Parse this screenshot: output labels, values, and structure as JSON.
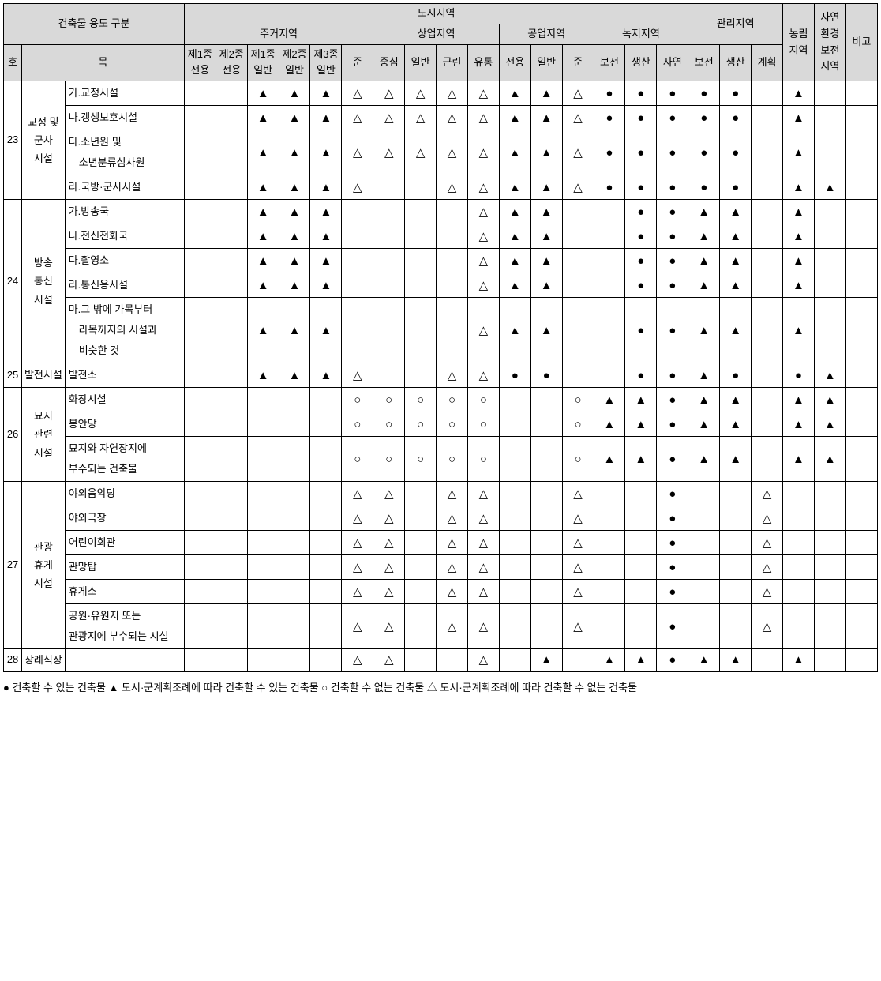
{
  "symbols": {
    "filled_circle": "●",
    "filled_triangle": "▲",
    "hollow_circle": "○",
    "hollow_triangle": "△",
    "blank": ""
  },
  "headers": {
    "title_block": "건축물 용도 구분",
    "ho": "호",
    "mok": "목",
    "urban_area": "도시지역",
    "residential": "주거지역",
    "commercial": "상업지역",
    "industrial": "공업지역",
    "green": "녹지지역",
    "management": "관리지역",
    "agri": "농림\n지역",
    "nature": "자연\n환경\n보전\n지역",
    "remark": "비고",
    "res_cols": [
      "제1종\n전용",
      "제2종\n전용",
      "제1종\n일반",
      "제2종\n일반",
      "제3종\n일반",
      "준"
    ],
    "com_cols": [
      "중심",
      "일반",
      "근린",
      "유통"
    ],
    "ind_cols": [
      "전용",
      "일반",
      "준"
    ],
    "grn_cols": [
      "보전",
      "생산",
      "자연"
    ],
    "mgmt_cols": [
      "보전",
      "생산",
      "계획"
    ]
  },
  "groups": [
    {
      "num": "23",
      "cat": "교정 및\n군사\n시설",
      "rows": [
        {
          "label": "가.교정시설",
          "cells": [
            "",
            "",
            "▲",
            "▲",
            "▲",
            "△",
            "△",
            "△",
            "△",
            "△",
            "▲",
            "▲",
            "△",
            "●",
            "●",
            "●",
            "●",
            "●",
            "",
            "▲",
            ""
          ]
        },
        {
          "label": "나.갱생보호시설",
          "cells": [
            "",
            "",
            "▲",
            "▲",
            "▲",
            "△",
            "△",
            "△",
            "△",
            "△",
            "▲",
            "▲",
            "△",
            "●",
            "●",
            "●",
            "●",
            "●",
            "",
            "▲",
            ""
          ]
        },
        {
          "label": "다.소년원 및\n　소년분류심사원",
          "cells": [
            "",
            "",
            "▲",
            "▲",
            "▲",
            "△",
            "△",
            "△",
            "△",
            "△",
            "▲",
            "▲",
            "△",
            "●",
            "●",
            "●",
            "●",
            "●",
            "",
            "▲",
            ""
          ]
        },
        {
          "label": "라.국방·군사시설",
          "cells": [
            "",
            "",
            "▲",
            "▲",
            "▲",
            "△",
            "",
            "",
            "△",
            "△",
            "▲",
            "▲",
            "△",
            "●",
            "●",
            "●",
            "●",
            "●",
            "",
            "▲",
            "▲"
          ]
        }
      ]
    },
    {
      "num": "24",
      "cat": "방송\n통신\n시설",
      "rows": [
        {
          "label": "가.방송국",
          "cells": [
            "",
            "",
            "▲",
            "▲",
            "▲",
            "",
            "",
            "",
            "",
            "△",
            "▲",
            "▲",
            "",
            "",
            "●",
            "●",
            "▲",
            "▲",
            "",
            "▲",
            ""
          ]
        },
        {
          "label": "나.전신전화국",
          "cells": [
            "",
            "",
            "▲",
            "▲",
            "▲",
            "",
            "",
            "",
            "",
            "△",
            "▲",
            "▲",
            "",
            "",
            "●",
            "●",
            "▲",
            "▲",
            "",
            "▲",
            ""
          ]
        },
        {
          "label": "다.촬영소",
          "cells": [
            "",
            "",
            "▲",
            "▲",
            "▲",
            "",
            "",
            "",
            "",
            "△",
            "▲",
            "▲",
            "",
            "",
            "●",
            "●",
            "▲",
            "▲",
            "",
            "▲",
            ""
          ]
        },
        {
          "label": "라.통신용시설",
          "cells": [
            "",
            "",
            "▲",
            "▲",
            "▲",
            "",
            "",
            "",
            "",
            "△",
            "▲",
            "▲",
            "",
            "",
            "●",
            "●",
            "▲",
            "▲",
            "",
            "▲",
            ""
          ]
        },
        {
          "label": "마.그 밖에 가목부터\n　라목까지의 시설과\n　비슷한 것",
          "cells": [
            "",
            "",
            "▲",
            "▲",
            "▲",
            "",
            "",
            "",
            "",
            "△",
            "▲",
            "▲",
            "",
            "",
            "●",
            "●",
            "▲",
            "▲",
            "",
            "▲",
            ""
          ]
        }
      ]
    },
    {
      "num": "25",
      "cat": "발전시설",
      "rows": [
        {
          "label": "발전소",
          "cells": [
            "",
            "",
            "▲",
            "▲",
            "▲",
            "△",
            "",
            "",
            "△",
            "△",
            "●",
            "●",
            "",
            "",
            "●",
            "●",
            "▲",
            "●",
            "",
            "●",
            "▲"
          ]
        }
      ]
    },
    {
      "num": "26",
      "cat": "묘지\n관련\n시설",
      "rows": [
        {
          "label": "화장시설",
          "cells": [
            "",
            "",
            "",
            "",
            "",
            "○",
            "○",
            "○",
            "○",
            "○",
            "",
            "",
            "○",
            "▲",
            "▲",
            "●",
            "▲",
            "▲",
            "",
            "▲",
            "▲"
          ]
        },
        {
          "label": "봉안당",
          "cells": [
            "",
            "",
            "",
            "",
            "",
            "○",
            "○",
            "○",
            "○",
            "○",
            "",
            "",
            "○",
            "▲",
            "▲",
            "●",
            "▲",
            "▲",
            "",
            "▲",
            "▲"
          ]
        },
        {
          "label": "묘지와 자연장지에\n부수되는 건축물",
          "cells": [
            "",
            "",
            "",
            "",
            "",
            "○",
            "○",
            "○",
            "○",
            "○",
            "",
            "",
            "○",
            "▲",
            "▲",
            "●",
            "▲",
            "▲",
            "",
            "▲",
            "▲"
          ]
        }
      ]
    },
    {
      "num": "27",
      "cat": "관광\n휴게\n시설",
      "rows": [
        {
          "label": "야외음악당",
          "cells": [
            "",
            "",
            "",
            "",
            "",
            "△",
            "△",
            "",
            "△",
            "△",
            "",
            "",
            "△",
            "",
            "",
            "●",
            "",
            "",
            "△",
            "",
            ""
          ]
        },
        {
          "label": "야외극장",
          "cells": [
            "",
            "",
            "",
            "",
            "",
            "△",
            "△",
            "",
            "△",
            "△",
            "",
            "",
            "△",
            "",
            "",
            "●",
            "",
            "",
            "△",
            "",
            ""
          ]
        },
        {
          "label": "어린이회관",
          "cells": [
            "",
            "",
            "",
            "",
            "",
            "△",
            "△",
            "",
            "△",
            "△",
            "",
            "",
            "△",
            "",
            "",
            "●",
            "",
            "",
            "△",
            "",
            ""
          ]
        },
        {
          "label": "관망탑",
          "cells": [
            "",
            "",
            "",
            "",
            "",
            "△",
            "△",
            "",
            "△",
            "△",
            "",
            "",
            "△",
            "",
            "",
            "●",
            "",
            "",
            "△",
            "",
            ""
          ]
        },
        {
          "label": "휴게소",
          "cells": [
            "",
            "",
            "",
            "",
            "",
            "△",
            "△",
            "",
            "△",
            "△",
            "",
            "",
            "△",
            "",
            "",
            "●",
            "",
            "",
            "△",
            "",
            ""
          ]
        },
        {
          "label": "공원·유원지 또는\n관광지에 부수되는 시설",
          "cells": [
            "",
            "",
            "",
            "",
            "",
            "△",
            "△",
            "",
            "△",
            "△",
            "",
            "",
            "△",
            "",
            "",
            "●",
            "",
            "",
            "△",
            "",
            ""
          ]
        }
      ]
    },
    {
      "num": "28",
      "cat": "장례식장",
      "rows": [
        {
          "label": "",
          "cells": [
            "",
            "",
            "",
            "",
            "",
            "△",
            "△",
            "",
            "",
            "△",
            "",
            "▲",
            "",
            "▲",
            "▲",
            "●",
            "▲",
            "▲",
            "",
            "▲",
            ""
          ]
        }
      ]
    }
  ],
  "legend": "● 건축할 수 있는 건축물 ▲ 도시·군계획조례에 따라 건축할 수 있는 건축물 ○ 건축할 수 없는 건축물 △ 도시·군계획조례에 따라 건축할 수 없는 건축물"
}
